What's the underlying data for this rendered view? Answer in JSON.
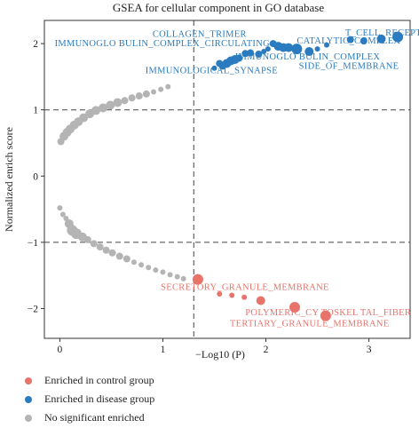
{
  "chart_data": {
    "type": "scatter",
    "title": "GSEA for cellular component in GO database",
    "xlabel": "−Log10 (P)",
    "ylabel": "Normalized enrich score",
    "xlim": [
      -0.15,
      3.4
    ],
    "ylim": [
      -2.45,
      2.35
    ],
    "xticks": [
      0,
      1,
      2,
      3
    ],
    "yticks": [
      -2,
      -1,
      0,
      1,
      2
    ],
    "thresholds": {
      "x": 1.3,
      "y_upper": 1,
      "y_lower": -1
    },
    "colors": {
      "control": "#e8736b",
      "disease": "#2a7bbf",
      "none": "#b4b4b4"
    },
    "series": [
      {
        "name": "Enriched in control group",
        "key": "control",
        "points": [
          {
            "x": 1.34,
            "y": -1.56,
            "s": 6
          },
          {
            "x": 1.55,
            "y": -1.78,
            "s": 3
          },
          {
            "x": 1.67,
            "y": -1.8,
            "s": 3
          },
          {
            "x": 1.79,
            "y": -1.83,
            "s": 3
          },
          {
            "x": 1.95,
            "y": -1.88,
            "s": 5
          },
          {
            "x": 2.28,
            "y": -1.98,
            "s": 6
          },
          {
            "x": 2.58,
            "y": -2.11,
            "s": 6
          }
        ]
      },
      {
        "name": "Enriched in disease group",
        "key": "disease",
        "points": [
          {
            "x": 3.28,
            "y": 2.1,
            "s": 6
          },
          {
            "x": 3.12,
            "y": 2.07,
            "s": 5
          },
          {
            "x": 2.95,
            "y": 2.04,
            "s": 4
          },
          {
            "x": 2.82,
            "y": 2.06,
            "s": 4
          },
          {
            "x": 2.59,
            "y": 1.98,
            "s": 3
          },
          {
            "x": 2.5,
            "y": 1.92,
            "s": 3
          },
          {
            "x": 2.42,
            "y": 1.88,
            "s": 5
          },
          {
            "x": 2.3,
            "y": 1.92,
            "s": 6
          },
          {
            "x": 2.22,
            "y": 1.94,
            "s": 5
          },
          {
            "x": 2.17,
            "y": 1.94,
            "s": 5
          },
          {
            "x": 2.12,
            "y": 1.96,
            "s": 5
          },
          {
            "x": 2.07,
            "y": 2.0,
            "s": 4
          },
          {
            "x": 2.02,
            "y": 1.92,
            "s": 3
          },
          {
            "x": 1.98,
            "y": 1.88,
            "s": 3
          },
          {
            "x": 1.93,
            "y": 1.84,
            "s": 4
          },
          {
            "x": 1.85,
            "y": 1.86,
            "s": 4
          },
          {
            "x": 1.8,
            "y": 1.85,
            "s": 4
          },
          {
            "x": 1.74,
            "y": 1.78,
            "s": 4
          },
          {
            "x": 1.7,
            "y": 1.76,
            "s": 5
          },
          {
            "x": 1.66,
            "y": 1.74,
            "s": 5
          },
          {
            "x": 1.62,
            "y": 1.7,
            "s": 5
          },
          {
            "x": 1.58,
            "y": 1.66,
            "s": 4
          },
          {
            "x": 1.55,
            "y": 1.7,
            "s": 4
          },
          {
            "x": 1.5,
            "y": 1.63,
            "s": 3
          }
        ]
      },
      {
        "name": "No significant enriched",
        "key": "none",
        "points": [
          {
            "x": 0.01,
            "y": 0.52,
            "s": 4
          },
          {
            "x": 0.04,
            "y": 0.6,
            "s": 5
          },
          {
            "x": 0.07,
            "y": 0.66,
            "s": 5
          },
          {
            "x": 0.1,
            "y": 0.71,
            "s": 5
          },
          {
            "x": 0.14,
            "y": 0.77,
            "s": 5
          },
          {
            "x": 0.18,
            "y": 0.82,
            "s": 5
          },
          {
            "x": 0.23,
            "y": 0.88,
            "s": 5
          },
          {
            "x": 0.29,
            "y": 0.94,
            "s": 5
          },
          {
            "x": 0.35,
            "y": 0.99,
            "s": 5
          },
          {
            "x": 0.42,
            "y": 1.03,
            "s": 5
          },
          {
            "x": 0.49,
            "y": 1.07,
            "s": 5
          },
          {
            "x": 0.56,
            "y": 1.11,
            "s": 5
          },
          {
            "x": 0.63,
            "y": 1.14,
            "s": 4
          },
          {
            "x": 0.7,
            "y": 1.18,
            "s": 4
          },
          {
            "x": 0.77,
            "y": 1.21,
            "s": 4
          },
          {
            "x": 0.84,
            "y": 1.24,
            "s": 4
          },
          {
            "x": 0.91,
            "y": 1.27,
            "s": 3
          },
          {
            "x": 0.98,
            "y": 1.31,
            "s": 3
          },
          {
            "x": 1.05,
            "y": 1.35,
            "s": 3
          },
          {
            "x": 0.0,
            "y": -0.48,
            "s": 3
          },
          {
            "x": 0.03,
            "y": -0.58,
            "s": 3
          },
          {
            "x": 0.06,
            "y": -0.64,
            "s": 3
          },
          {
            "x": 0.09,
            "y": -0.72,
            "s": 5
          },
          {
            "x": 0.12,
            "y": -0.82,
            "s": 6
          },
          {
            "x": 0.16,
            "y": -0.87,
            "s": 6
          },
          {
            "x": 0.22,
            "y": -0.92,
            "s": 5
          },
          {
            "x": 0.27,
            "y": -0.96,
            "s": 4
          },
          {
            "x": 0.33,
            "y": -1.02,
            "s": 4
          },
          {
            "x": 0.39,
            "y": -1.07,
            "s": 4
          },
          {
            "x": 0.45,
            "y": -1.12,
            "s": 4
          },
          {
            "x": 0.51,
            "y": -1.16,
            "s": 4
          },
          {
            "x": 0.58,
            "y": -1.21,
            "s": 4
          },
          {
            "x": 0.65,
            "y": -1.25,
            "s": 4
          },
          {
            "x": 0.72,
            "y": -1.3,
            "s": 3
          },
          {
            "x": 0.79,
            "y": -1.34,
            "s": 3
          },
          {
            "x": 0.86,
            "y": -1.38,
            "s": 3
          },
          {
            "x": 0.93,
            "y": -1.42,
            "s": 3
          },
          {
            "x": 1.0,
            "y": -1.45,
            "s": 3
          },
          {
            "x": 1.07,
            "y": -1.49,
            "s": 3
          },
          {
            "x": 1.14,
            "y": -1.52,
            "s": 3
          },
          {
            "x": 1.2,
            "y": -1.55,
            "s": 3
          }
        ]
      }
    ],
    "annotations": [
      {
        "text": "COLLAGEN_TRIMER",
        "x": 0.9,
        "y": 2.1,
        "key": "disease"
      },
      {
        "text": "T_CELL_RECEPTOR_COMPLEX",
        "x": 2.77,
        "y": 2.12,
        "key": "disease"
      },
      {
        "text": "IMMUNOGLO BULIN_COMPLEX_CIRCULATING",
        "x": -0.05,
        "y": 1.96,
        "key": "disease"
      },
      {
        "text": "CATALYTIC_COMPLEX",
        "x": 2.3,
        "y": 2.0,
        "key": "disease"
      },
      {
        "text": "IMMUNOGLO BULIN_COMPLEX",
        "x": 1.7,
        "y": 1.76,
        "key": "disease"
      },
      {
        "text": "SIDE_OF_MEMBRANE",
        "x": 2.32,
        "y": 1.62,
        "key": "disease"
      },
      {
        "text": "IMMUNOLOGICAL_SYNAPSE",
        "x": 0.83,
        "y": 1.55,
        "key": "disease"
      },
      {
        "text": "SECRETORY_GRANULE_MEMBRANE",
        "x": 0.98,
        "y": -1.72,
        "key": "control"
      },
      {
        "text": "POLYMERIC_CY  TOSKEL    TAL_FIBER",
        "x": 1.8,
        "y": -2.1,
        "key": "control"
      },
      {
        "text": "TERTIARY_GRANULE_MEMBRANE",
        "x": 1.65,
        "y": -2.27,
        "key": "control"
      }
    ]
  }
}
